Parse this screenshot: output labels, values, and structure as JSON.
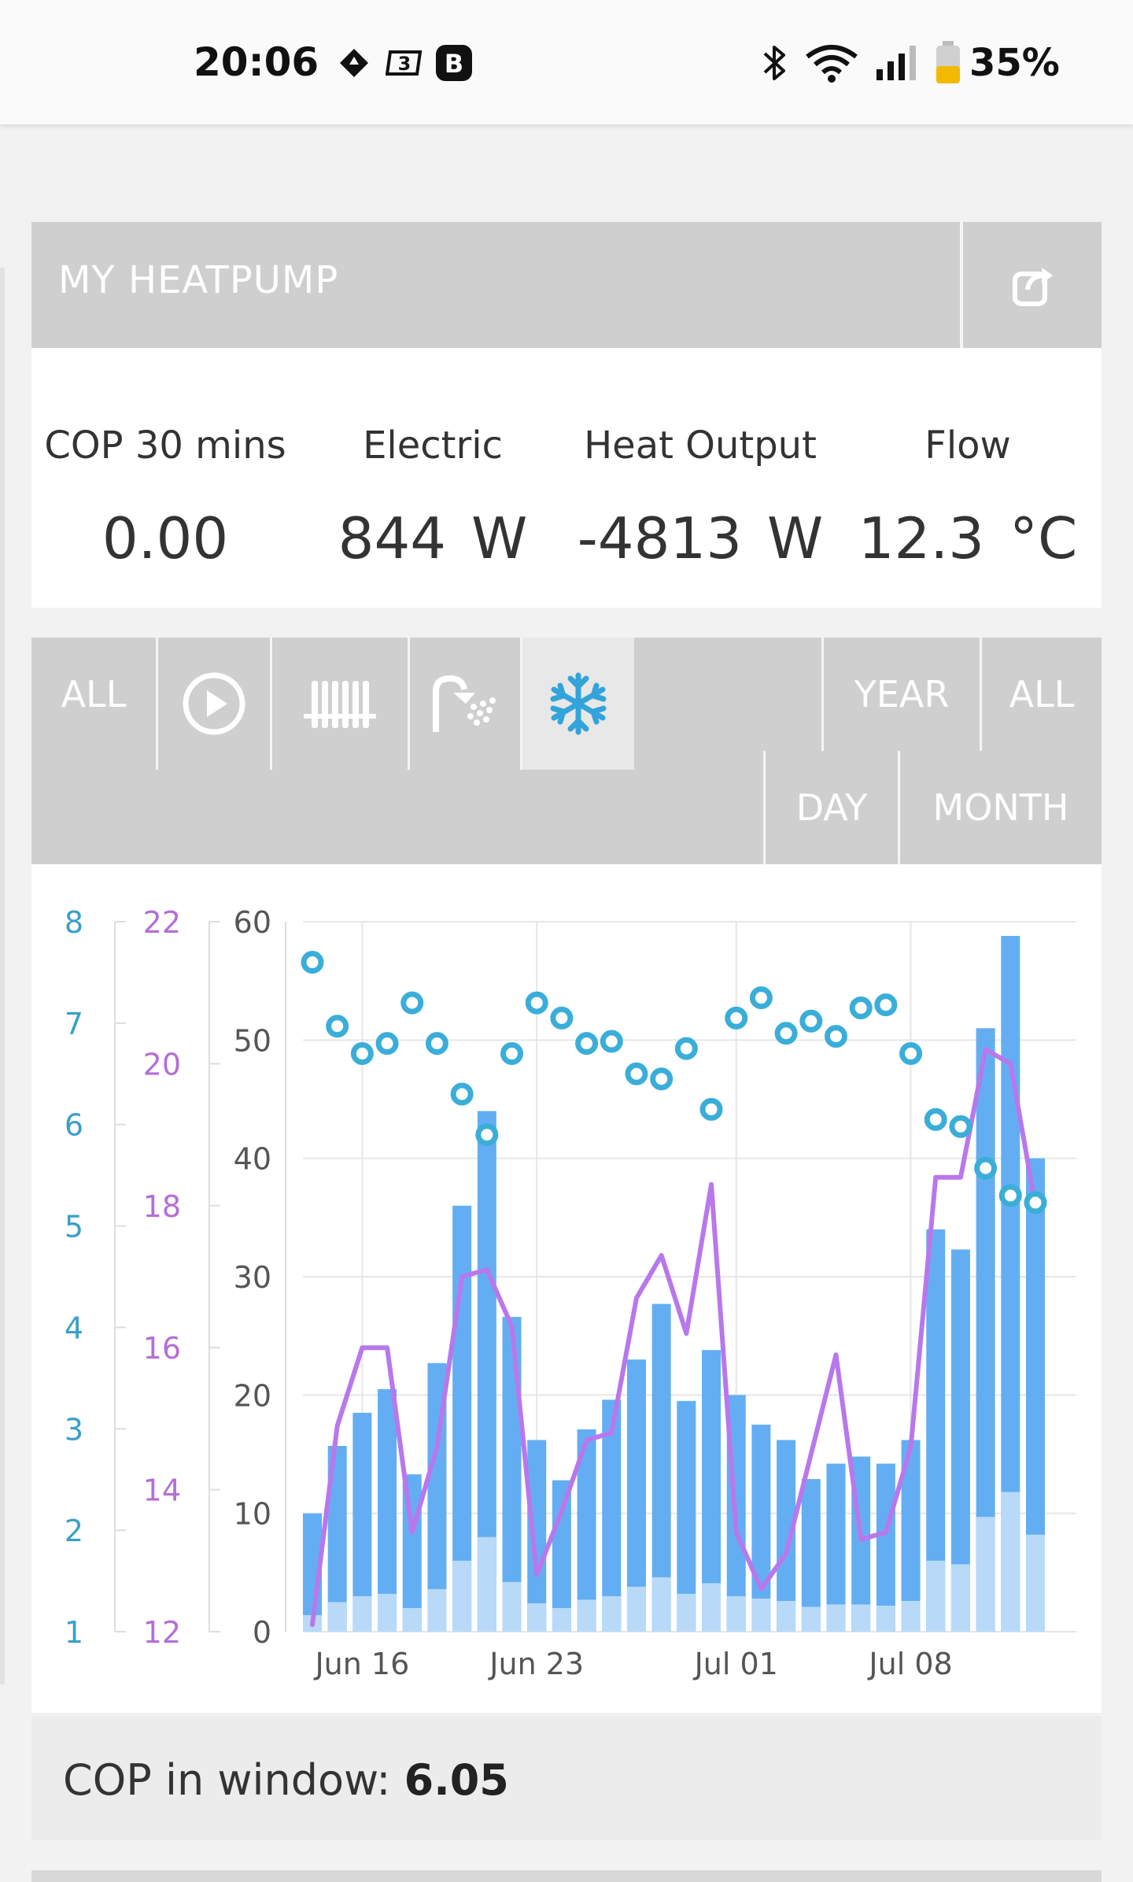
{
  "status_bar": {
    "time": "20:06",
    "battery": "35%"
  },
  "panel": {
    "title": "MY HEATPUMP"
  },
  "stats": [
    {
      "label": "COP 30 mins",
      "value": "0.00",
      "unit": ""
    },
    {
      "label": "Electric",
      "value": "844",
      "unit": "W"
    },
    {
      "label": "Heat Output",
      "value": "-4813",
      "unit": "W"
    },
    {
      "label": "Flow",
      "value": "12.3",
      "unit": "°C"
    }
  ],
  "toolbar": {
    "mode_all": "ALL",
    "range_year": "YEAR",
    "range_all": "ALL",
    "range_day": "DAY",
    "range_month": "MONTH",
    "active_mode": "cooling"
  },
  "chart_data": {
    "type": "bar",
    "x_ticks": [
      "Jun 16",
      "Jun 23",
      "Jul 01",
      "Jul 08"
    ],
    "axes": {
      "cop": {
        "ticks": [
          "1",
          "2",
          "3",
          "4",
          "5",
          "6",
          "7",
          "8"
        ],
        "range": [
          1,
          8
        ],
        "color": "#3aa0c8"
      },
      "temp": {
        "ticks": [
          "12",
          "14",
          "16",
          "18",
          "20",
          "22"
        ],
        "range": [
          12,
          22
        ],
        "color": "#b56ed6"
      },
      "energy": {
        "ticks": [
          "0",
          "10",
          "20",
          "30",
          "40",
          "50",
          "60"
        ],
        "range": [
          0,
          60
        ],
        "color": "#555555"
      }
    },
    "colors": {
      "heat_bar": "#63aef2",
      "elec_bar": "#b8daf8",
      "cop_points": "#3aaed8",
      "temp_line": "#b878ec"
    },
    "series": [
      {
        "key": "heat",
        "values": [
          10,
          15.7,
          18.5,
          20.5,
          13.3,
          22.7,
          36,
          44,
          26.6,
          16.2,
          12.8,
          17.1,
          19.6,
          23,
          27.7,
          19.5,
          23.8,
          20,
          17.5,
          16.2,
          12.9,
          14.2,
          14.8,
          14.2,
          16.2,
          34,
          32.3,
          51,
          58.8,
          40
        ]
      },
      {
        "key": "electric",
        "values": [
          1.4,
          2.5,
          3,
          3.2,
          2,
          3.6,
          6,
          8,
          4.2,
          2.4,
          2,
          2.7,
          3,
          3.8,
          4.6,
          3.2,
          4.1,
          3,
          2.8,
          2.6,
          2.1,
          2.3,
          2.3,
          2.2,
          2.6,
          6,
          5.7,
          9.7,
          11.8,
          8.2
        ]
      },
      {
        "key": "cop",
        "values": [
          7.6,
          6.97,
          6.7,
          6.8,
          7.2,
          6.8,
          6.3,
          5.9,
          6.7,
          7.2,
          7.05,
          6.8,
          6.82,
          6.5,
          6.45,
          6.75,
          6.15,
          7.05,
          7.25,
          6.9,
          7.02,
          6.87,
          7.15,
          7.18,
          6.7,
          6.05,
          5.98,
          5.57,
          5.3,
          5.23
        ]
      },
      {
        "key": "flow_temp",
        "values": [
          12.1,
          14.9,
          16.0,
          16.0,
          13.4,
          14.6,
          17.0,
          17.1,
          16.3,
          12.8,
          13.7,
          14.7,
          14.8,
          16.7,
          17.3,
          16.2,
          18.3,
          13.4,
          12.6,
          13.1,
          14.5,
          15.9,
          13.3,
          13.4,
          14.6,
          18.4,
          18.4,
          20.2,
          20.0,
          18.0
        ]
      }
    ]
  },
  "cop_window": {
    "label": "COP in window:",
    "value": "6.05"
  }
}
